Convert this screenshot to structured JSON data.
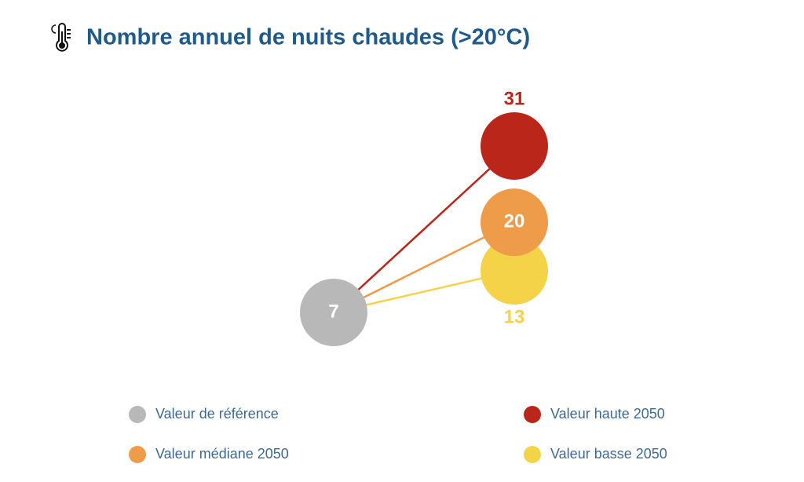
{
  "chart_data": {
    "type": "dot",
    "title": "Nombre annuel de nuits chaudes (>20°C)",
    "series": [
      {
        "name": "Valeur de référence",
        "color": "#b8b8b8",
        "values": [
          7
        ]
      },
      {
        "name": "Valeur haute 2050",
        "color": "#bb261a",
        "values": [
          31
        ]
      },
      {
        "name": "Valeur médiane 2050",
        "color": "#ee9b4a",
        "values": [
          20
        ]
      },
      {
        "name": "Valeur basse 2050",
        "color": "#f5d348",
        "values": [
          13
        ]
      }
    ]
  }
}
